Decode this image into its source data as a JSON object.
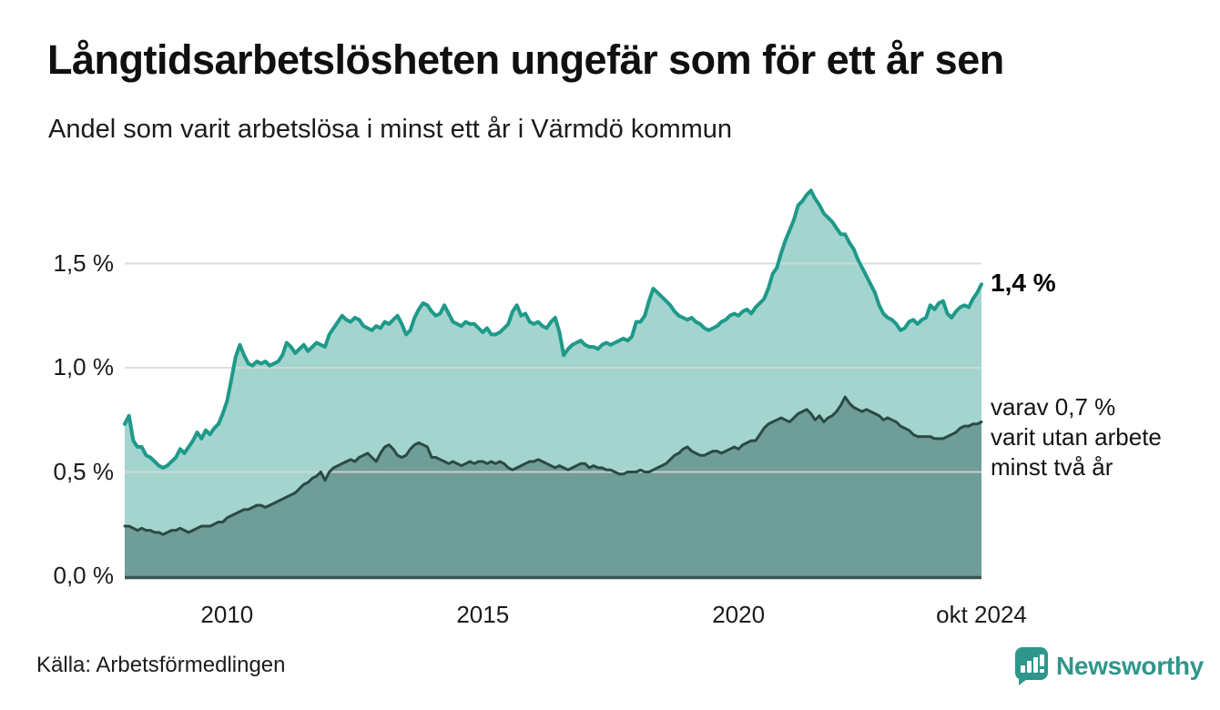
{
  "palette": {
    "accent_teal": "#1e998a",
    "fill_light": "#a3d5ce",
    "fill_dark": "#6f9d97",
    "line_dark": "#2b4a46",
    "grid": "#d8d8d8",
    "axis": "#3b5551",
    "logo_teal": "#2e968a",
    "text": "#141414"
  },
  "chart_data": {
    "type": "area",
    "title": "Långtidsarbetslösheten ungefär som för ett år sen",
    "subtitle": "Andel som varit arbetslösa i minst ett år i Värmdö kommun",
    "unit": "%",
    "grid": true,
    "legend": "direct-labels",
    "xlim": [
      2008.0,
      2024.75
    ],
    "ylim": [
      0,
      1.9
    ],
    "x_start_year": 2008,
    "x_step_months": 1,
    "x_ticks": [
      {
        "value": 2010,
        "label": "2010"
      },
      {
        "value": 2015,
        "label": "2015"
      },
      {
        "value": 2020,
        "label": "2020"
      },
      {
        "value": 2024.75,
        "label": "okt 2024"
      }
    ],
    "y_ticks": [
      {
        "value": 0.0,
        "label": "0,0 %"
      },
      {
        "value": 0.5,
        "label": "0,5 %"
      },
      {
        "value": 1.0,
        "label": "1,0 %"
      },
      {
        "value": 1.5,
        "label": "1,5 %"
      }
    ],
    "series": [
      {
        "name": "Andel arbetslösa minst ett år",
        "line_color": "#1e998a",
        "fill_color": "#a3d5ce",
        "line_width": 4,
        "values": [
          0.73,
          0.77,
          0.65,
          0.62,
          0.62,
          0.58,
          0.57,
          0.55,
          0.53,
          0.52,
          0.53,
          0.55,
          0.57,
          0.61,
          0.59,
          0.62,
          0.65,
          0.69,
          0.66,
          0.7,
          0.68,
          0.71,
          0.73,
          0.78,
          0.84,
          0.94,
          1.05,
          1.11,
          1.06,
          1.02,
          1.01,
          1.03,
          1.02,
          1.03,
          1.01,
          1.02,
          1.03,
          1.06,
          1.12,
          1.1,
          1.07,
          1.09,
          1.11,
          1.08,
          1.1,
          1.12,
          1.11,
          1.1,
          1.16,
          1.19,
          1.22,
          1.25,
          1.23,
          1.22,
          1.24,
          1.23,
          1.2,
          1.19,
          1.18,
          1.2,
          1.19,
          1.22,
          1.21,
          1.23,
          1.25,
          1.21,
          1.16,
          1.18,
          1.24,
          1.28,
          1.31,
          1.3,
          1.27,
          1.25,
          1.26,
          1.3,
          1.26,
          1.22,
          1.21,
          1.2,
          1.22,
          1.21,
          1.21,
          1.19,
          1.17,
          1.19,
          1.16,
          1.16,
          1.17,
          1.19,
          1.21,
          1.27,
          1.3,
          1.25,
          1.26,
          1.22,
          1.21,
          1.22,
          1.2,
          1.19,
          1.22,
          1.24,
          1.17,
          1.06,
          1.09,
          1.11,
          1.12,
          1.13,
          1.11,
          1.1,
          1.1,
          1.09,
          1.11,
          1.12,
          1.11,
          1.12,
          1.13,
          1.14,
          1.13,
          1.15,
          1.22,
          1.22,
          1.25,
          1.32,
          1.38,
          1.36,
          1.34,
          1.32,
          1.3,
          1.27,
          1.25,
          1.24,
          1.23,
          1.24,
          1.22,
          1.21,
          1.19,
          1.18,
          1.19,
          1.2,
          1.22,
          1.23,
          1.25,
          1.26,
          1.25,
          1.27,
          1.28,
          1.26,
          1.29,
          1.31,
          1.33,
          1.38,
          1.45,
          1.48,
          1.55,
          1.61,
          1.66,
          1.71,
          1.78,
          1.8,
          1.83,
          1.85,
          1.81,
          1.78,
          1.74,
          1.72,
          1.7,
          1.67,
          1.64,
          1.64,
          1.6,
          1.57,
          1.52,
          1.48,
          1.44,
          1.4,
          1.36,
          1.3,
          1.26,
          1.24,
          1.23,
          1.21,
          1.18,
          1.19,
          1.22,
          1.23,
          1.21,
          1.23,
          1.24,
          1.3,
          1.28,
          1.31,
          1.32,
          1.26,
          1.24,
          1.27,
          1.29,
          1.3,
          1.29,
          1.33,
          1.36,
          1.4
        ]
      },
      {
        "name": "varav utan arbete minst två år",
        "line_color": "#2b4a46",
        "fill_color": "#6f9d97",
        "line_width": 3,
        "values": [
          0.24,
          0.24,
          0.23,
          0.22,
          0.23,
          0.22,
          0.22,
          0.21,
          0.21,
          0.2,
          0.21,
          0.22,
          0.22,
          0.23,
          0.22,
          0.21,
          0.22,
          0.23,
          0.24,
          0.24,
          0.24,
          0.25,
          0.26,
          0.26,
          0.28,
          0.29,
          0.3,
          0.31,
          0.32,
          0.32,
          0.33,
          0.34,
          0.34,
          0.33,
          0.34,
          0.35,
          0.36,
          0.37,
          0.38,
          0.39,
          0.4,
          0.42,
          0.44,
          0.45,
          0.47,
          0.48,
          0.5,
          0.46,
          0.5,
          0.52,
          0.53,
          0.54,
          0.55,
          0.56,
          0.55,
          0.57,
          0.58,
          0.59,
          0.57,
          0.55,
          0.59,
          0.62,
          0.63,
          0.61,
          0.58,
          0.57,
          0.58,
          0.61,
          0.63,
          0.64,
          0.63,
          0.62,
          0.57,
          0.57,
          0.56,
          0.55,
          0.54,
          0.55,
          0.54,
          0.53,
          0.54,
          0.55,
          0.54,
          0.55,
          0.55,
          0.54,
          0.55,
          0.54,
          0.55,
          0.54,
          0.52,
          0.51,
          0.52,
          0.53,
          0.54,
          0.55,
          0.55,
          0.56,
          0.55,
          0.54,
          0.53,
          0.52,
          0.53,
          0.52,
          0.51,
          0.52,
          0.53,
          0.54,
          0.54,
          0.52,
          0.53,
          0.52,
          0.52,
          0.51,
          0.51,
          0.5,
          0.49,
          0.49,
          0.5,
          0.5,
          0.5,
          0.51,
          0.5,
          0.5,
          0.51,
          0.52,
          0.53,
          0.54,
          0.56,
          0.58,
          0.59,
          0.61,
          0.62,
          0.6,
          0.59,
          0.58,
          0.58,
          0.59,
          0.6,
          0.6,
          0.59,
          0.6,
          0.61,
          0.62,
          0.61,
          0.63,
          0.64,
          0.65,
          0.65,
          0.68,
          0.71,
          0.73,
          0.74,
          0.75,
          0.76,
          0.75,
          0.74,
          0.76,
          0.78,
          0.79,
          0.8,
          0.78,
          0.75,
          0.77,
          0.74,
          0.76,
          0.77,
          0.79,
          0.82,
          0.86,
          0.83,
          0.81,
          0.8,
          0.79,
          0.8,
          0.79,
          0.78,
          0.77,
          0.75,
          0.76,
          0.75,
          0.74,
          0.72,
          0.71,
          0.7,
          0.68,
          0.67,
          0.67,
          0.67,
          0.67,
          0.66,
          0.66,
          0.66,
          0.67,
          0.68,
          0.69,
          0.71,
          0.72,
          0.72,
          0.73,
          0.73,
          0.74
        ]
      }
    ],
    "annotations": {
      "latest_total": "1,4 %",
      "two_year_note": [
        "varav 0,7 %",
        "varit utan arbete",
        "minst två år"
      ]
    }
  },
  "footer": {
    "source": "Källa: Arbetsförmedlingen",
    "logo_text": "Newsworthy"
  }
}
